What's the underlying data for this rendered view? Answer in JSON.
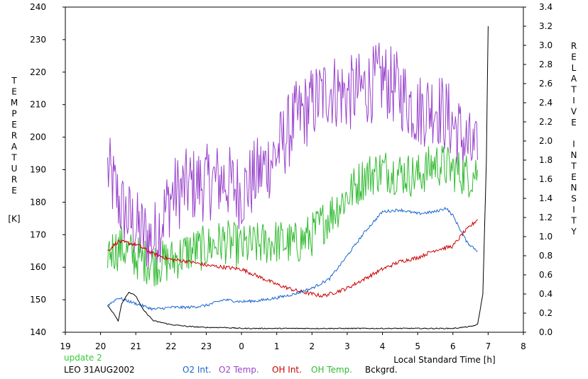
{
  "chart_data": {
    "type": "line",
    "left_axis": {
      "label_letters": [
        "T",
        "E",
        "M",
        "P",
        "E",
        "R",
        "A",
        "T",
        "U",
        "R",
        "E"
      ],
      "unit": "[K]",
      "range": [
        140,
        240
      ],
      "ticks": [
        "140",
        "150",
        "160",
        "170",
        "180",
        "190",
        "200",
        "210",
        "220",
        "230",
        "240"
      ]
    },
    "right_axis": {
      "label_letters": [
        "R",
        "E",
        "L",
        "A",
        "T",
        "I",
        "V",
        "E",
        " ",
        "I",
        "N",
        "T",
        "E",
        "N",
        "S",
        "I",
        "T",
        "Y"
      ],
      "range": [
        0,
        3.4
      ],
      "ticks": [
        "0.0",
        "0.2",
        "0.4",
        "0.6",
        "0.8",
        "1.0",
        "1.2",
        "1.4",
        "1.6",
        "1.8",
        "2.0",
        "2.2",
        "2.4",
        "2.6",
        "2.8",
        "3.0",
        "3.2",
        "3.4"
      ]
    },
    "x_axis": {
      "range": [
        19,
        32
      ],
      "ticks": [
        "19",
        "20",
        "21",
        "22",
        "23",
        "0",
        "1",
        "2",
        "3",
        "4",
        "5",
        "6",
        "7",
        "8"
      ],
      "label": "Local Standard Time [h]"
    },
    "update_text": "update 2",
    "station_text": "LEO 31AUG2002",
    "legend": [
      {
        "label": "O2 Int.",
        "color": "#1a66cc"
      },
      {
        "label": "O2 Temp.",
        "color": "#9944cc"
      },
      {
        "label": "OH Int.",
        "color": "#cc0000"
      },
      {
        "label": "OH Temp.",
        "color": "#33bb33"
      },
      {
        "label": "Bckgrd.",
        "color": "#000000"
      }
    ],
    "series": [
      {
        "name": "O2 Temp.",
        "axis": "left",
        "color": "#9944cc",
        "noise": 12,
        "x": [
          20.2,
          20.6,
          21.0,
          21.5,
          22.0,
          22.5,
          23.0,
          23.5,
          24.0,
          24.5,
          25.0,
          25.5,
          26.0,
          26.5,
          27.0,
          27.5,
          28.0,
          28.5,
          29.0,
          29.5,
          30.0,
          30.5,
          30.7
        ],
        "y": [
          190,
          178,
          172,
          168,
          182,
          185,
          186,
          187,
          183,
          189,
          195,
          205,
          210,
          215,
          213,
          215,
          218,
          214,
          208,
          210,
          204,
          196,
          193
        ]
      },
      {
        "name": "OH Temp.",
        "axis": "left",
        "color": "#33bb33",
        "noise": 7,
        "x": [
          20.2,
          20.6,
          21.0,
          21.5,
          22.0,
          22.5,
          23.0,
          23.5,
          24.0,
          24.5,
          25.0,
          25.5,
          26.0,
          26.5,
          27.0,
          27.5,
          28.0,
          28.5,
          29.0,
          29.5,
          30.0,
          30.5,
          30.7
        ],
        "y": [
          165,
          166,
          163,
          161,
          162,
          165,
          166,
          168,
          166,
          167,
          168,
          167,
          170,
          176,
          182,
          188,
          190,
          189,
          188,
          192,
          190,
          188,
          190
        ]
      },
      {
        "name": "OH Int.",
        "axis": "right",
        "color": "#cc0000",
        "noise": 0.02,
        "x": [
          20.2,
          20.5,
          21.0,
          21.5,
          22.0,
          22.5,
          23.0,
          23.5,
          24.0,
          24.5,
          25.0,
          25.5,
          26.0,
          26.3,
          26.5,
          27.0,
          27.5,
          28.0,
          28.5,
          29.0,
          29.5,
          30.0,
          30.3,
          30.7
        ],
        "y": [
          0.85,
          0.95,
          0.92,
          0.82,
          0.76,
          0.74,
          0.7,
          0.68,
          0.66,
          0.58,
          0.5,
          0.44,
          0.4,
          0.38,
          0.4,
          0.46,
          0.56,
          0.66,
          0.74,
          0.78,
          0.86,
          0.9,
          1.04,
          1.18
        ]
      },
      {
        "name": "O2 Int.",
        "axis": "right",
        "color": "#1a66cc",
        "noise": 0.015,
        "x": [
          20.2,
          20.5,
          21.0,
          21.5,
          22.0,
          22.5,
          23.0,
          23.5,
          24.0,
          24.5,
          25.0,
          25.5,
          26.0,
          26.5,
          27.0,
          27.5,
          28.0,
          28.5,
          29.0,
          29.5,
          29.8,
          30.0,
          30.2,
          30.4,
          30.7
        ],
        "y": [
          0.28,
          0.36,
          0.3,
          0.24,
          0.26,
          0.26,
          0.28,
          0.34,
          0.32,
          0.33,
          0.36,
          0.4,
          0.46,
          0.56,
          0.8,
          1.05,
          1.26,
          1.28,
          1.24,
          1.26,
          1.3,
          1.22,
          1.08,
          0.94,
          0.85
        ]
      },
      {
        "name": "Bckgrd.",
        "axis": "right",
        "color": "#000000",
        "noise": 0.005,
        "x": [
          20.2,
          20.4,
          20.5,
          20.6,
          20.8,
          21.0,
          21.2,
          21.5,
          22.0,
          22.5,
          23.0,
          23.5,
          24.0,
          25.0,
          26.0,
          27.0,
          28.0,
          29.0,
          30.0,
          30.5,
          30.7,
          30.85,
          30.95,
          31.0
        ],
        "y": [
          0.28,
          0.18,
          0.12,
          0.3,
          0.42,
          0.38,
          0.24,
          0.12,
          0.08,
          0.06,
          0.05,
          0.05,
          0.04,
          0.04,
          0.04,
          0.04,
          0.04,
          0.04,
          0.04,
          0.06,
          0.08,
          0.4,
          1.8,
          3.2
        ]
      }
    ]
  }
}
